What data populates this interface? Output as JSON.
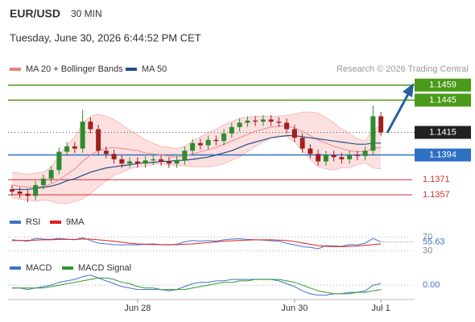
{
  "header": {
    "symbol": "EUR/USD",
    "timeframe": "30 MIN",
    "datetime": "Tuesday, June 30, 2026 6:44:52 PM CET",
    "source": "Research © 2026 Trading Central"
  },
  "chart_data": [
    {
      "type": "candlestick",
      "up_color": "#2e8b2e",
      "down_color": "#a02020",
      "open": [
        1.1362,
        1.136,
        1.1358,
        1.1356,
        1.1366,
        1.1372,
        1.138,
        1.1397,
        1.1402,
        1.14,
        1.1425,
        1.1418,
        1.1398,
        1.1395,
        1.139,
        1.1386,
        1.1388,
        1.1386,
        1.1389,
        1.139,
        1.1388,
        1.1386,
        1.1389,
        1.1398,
        1.1405,
        1.1403,
        1.1408,
        1.1407,
        1.1414,
        1.142,
        1.1424,
        1.1426,
        1.1425,
        1.1427,
        1.1425,
        1.1424,
        1.1418,
        1.141,
        1.14,
        1.1395,
        1.1388,
        1.1394,
        1.1392,
        1.139,
        1.1394,
        1.1393,
        1.1398,
        1.143
      ],
      "high": [
        1.1366,
        1.1364,
        1.1362,
        1.137,
        1.1376,
        1.1384,
        1.1401,
        1.1406,
        1.1406,
        1.1436,
        1.1429,
        1.1422,
        1.1402,
        1.1399,
        1.1394,
        1.1392,
        1.1392,
        1.1393,
        1.1394,
        1.1394,
        1.1392,
        1.1393,
        1.1402,
        1.1409,
        1.1409,
        1.1412,
        1.1412,
        1.1418,
        1.1424,
        1.1428,
        1.143,
        1.143,
        1.1431,
        1.1431,
        1.1429,
        1.1428,
        1.1422,
        1.1414,
        1.1404,
        1.1399,
        1.1398,
        1.1398,
        1.1396,
        1.1398,
        1.1398,
        1.1402,
        1.144,
        1.1434
      ],
      "low": [
        1.1356,
        1.1354,
        1.135,
        1.1352,
        1.1362,
        1.1368,
        1.1376,
        1.1393,
        1.1396,
        1.1396,
        1.1414,
        1.1394,
        1.1391,
        1.1386,
        1.1382,
        1.1382,
        1.1382,
        1.1382,
        1.1385,
        1.1384,
        1.1382,
        1.1382,
        1.1385,
        1.1394,
        1.1399,
        1.1399,
        1.1403,
        1.1403,
        1.141,
        1.1416,
        1.142,
        1.1421,
        1.1421,
        1.1421,
        1.142,
        1.1414,
        1.1406,
        1.1396,
        1.1391,
        1.1384,
        1.1384,
        1.1388,
        1.1386,
        1.1386,
        1.1389,
        1.1389,
        1.1394,
        1.1412
      ],
      "close": [
        1.136,
        1.1358,
        1.1356,
        1.1366,
        1.1372,
        1.138,
        1.1397,
        1.1402,
        1.14,
        1.1425,
        1.1418,
        1.1398,
        1.1395,
        1.139,
        1.1386,
        1.1388,
        1.1386,
        1.1389,
        1.139,
        1.1388,
        1.1386,
        1.1389,
        1.1398,
        1.1405,
        1.1403,
        1.1408,
        1.1407,
        1.1414,
        1.142,
        1.1424,
        1.1426,
        1.1425,
        1.1427,
        1.1425,
        1.1424,
        1.1418,
        1.141,
        1.14,
        1.1395,
        1.1388,
        1.1394,
        1.1392,
        1.139,
        1.1394,
        1.1393,
        1.1398,
        1.143,
        1.1415
      ],
      "bands": {
        "color": "#fbd3d3",
        "upper": [
          1.1378,
          1.1377,
          1.1376,
          1.1377,
          1.1378,
          1.1383,
          1.1393,
          1.1403,
          1.1411,
          1.1423,
          1.143,
          1.1432,
          1.143,
          1.1427,
          1.1422,
          1.1417,
          1.1413,
          1.1408,
          1.1405,
          1.1402,
          1.1401,
          1.14,
          1.1402,
          1.1407,
          1.1411,
          1.1415,
          1.1418,
          1.1422,
          1.1425,
          1.1428,
          1.1429,
          1.143,
          1.143,
          1.143,
          1.143,
          1.1431,
          1.1432,
          1.1434,
          1.1434,
          1.1433,
          1.1429,
          1.1424,
          1.1418,
          1.1414,
          1.1409,
          1.1407,
          1.1418,
          1.1421
        ],
        "lower": [
          1.1354,
          1.1353,
          1.1352,
          1.1351,
          1.1352,
          1.1351,
          1.1349,
          1.1349,
          1.1351,
          1.1353,
          1.1358,
          1.1364,
          1.137,
          1.1375,
          1.1378,
          1.1381,
          1.1383,
          1.1384,
          1.1385,
          1.1386,
          1.1385,
          1.1384,
          1.1384,
          1.1383,
          1.1383,
          1.1383,
          1.1384,
          1.1386,
          1.1389,
          1.1392,
          1.1397,
          1.1402,
          1.1406,
          1.141,
          1.1412,
          1.1411,
          1.1406,
          1.1398,
          1.139,
          1.1383,
          1.1381,
          1.138,
          1.1382,
          1.1382,
          1.1385,
          1.1387,
          1.1382,
          1.1381
        ]
      },
      "series": [
        {
          "name": "MA 20 + Bollinger Bands",
          "color": "#f08080",
          "values": [
            1.1366,
            1.1365,
            1.1364,
            1.1364,
            1.1365,
            1.1367,
            1.1371,
            1.1376,
            1.1381,
            1.1388,
            1.1394,
            1.1398,
            1.14,
            1.1401,
            1.14,
            1.1399,
            1.1398,
            1.1396,
            1.1395,
            1.1394,
            1.1393,
            1.1392,
            1.1393,
            1.1395,
            1.1397,
            1.1399,
            1.1401,
            1.1404,
            1.1407,
            1.141,
            1.1413,
            1.1416,
            1.1418,
            1.142,
            1.1421,
            1.1421,
            1.1419,
            1.1416,
            1.1412,
            1.1408,
            1.1405,
            1.1402,
            1.14,
            1.1398,
            1.1397,
            1.1397,
            1.14,
            1.1401
          ]
        },
        {
          "name": "MA 50",
          "color": "#1f4e8c",
          "values": [
            1.1362,
            1.1362,
            1.1362,
            1.1363,
            1.1364,
            1.1365,
            1.1367,
            1.137,
            1.1372,
            1.1375,
            1.1378,
            1.138,
            1.1382,
            1.1383,
            1.1384,
            1.1385,
            1.1386,
            1.1387,
            1.1387,
            1.1388,
            1.1388,
            1.1389,
            1.1389,
            1.139,
            1.1391,
            1.1392,
            1.1394,
            1.1396,
            1.1398,
            1.1401,
            1.1404,
            1.1406,
            1.1408,
            1.141,
            1.1411,
            1.1412,
            1.1412,
            1.1411,
            1.141,
            1.1409,
            1.1408,
            1.1407,
            1.1406,
            1.1405,
            1.1404,
            1.1404,
            1.1405,
            1.1405
          ]
        }
      ],
      "levels": [
        {
          "value": 1.1459,
          "color": "#4a9a1a",
          "style": "box",
          "line": "solid"
        },
        {
          "value": 1.1445,
          "color": "#4a9a1a",
          "style": "box",
          "line": "solid"
        },
        {
          "value": 1.1415,
          "color": "#222222",
          "style": "box",
          "line": "dotted"
        },
        {
          "value": 1.1394,
          "color": "#2f6fc4",
          "style": "box",
          "line": "solid"
        },
        {
          "value": 1.1371,
          "color": "#d03030",
          "style": "text",
          "line": "solid"
        },
        {
          "value": 1.1357,
          "color": "#d03030",
          "style": "text",
          "line": "solid"
        }
      ],
      "ylim": [
        1.1345,
        1.1467
      ],
      "xticks": [
        {
          "value": 16,
          "label": "Jun 28"
        },
        {
          "value": 36,
          "label": "Jun 30"
        },
        {
          "value": 47,
          "label": "Jul 1"
        }
      ]
    },
    {
      "type": "line",
      "series": [
        {
          "name": "RSI",
          "color": "#4472c4",
          "values": [
            62,
            60,
            58,
            66,
            64,
            63,
            66,
            64,
            62,
            68,
            60,
            52,
            50,
            48,
            47,
            48,
            47,
            49,
            50,
            48,
            47,
            49,
            56,
            60,
            58,
            60,
            58,
            62,
            64,
            65,
            63,
            62,
            61,
            59,
            58,
            52,
            47,
            42,
            40,
            36,
            45,
            44,
            43,
            48,
            47,
            52,
            66,
            55.63
          ]
        },
        {
          "name": "9MA",
          "color": "#e02020",
          "values": [
            60,
            60,
            60,
            61,
            62,
            62,
            63,
            63,
            63,
            64,
            64,
            62,
            60,
            58,
            55,
            52,
            50,
            49,
            48,
            48,
            48,
            48,
            49,
            50,
            52,
            54,
            56,
            58,
            59,
            60,
            61,
            62,
            62,
            62,
            61,
            60,
            57,
            53,
            49,
            45,
            43,
            42,
            42,
            43,
            44,
            46,
            48,
            50
          ]
        }
      ],
      "ylim": [
        15,
        85
      ],
      "yticks": [
        70,
        30
      ]
    },
    {
      "type": "line",
      "series": [
        {
          "name": "MACD",
          "color": "#4472c4",
          "values": [
            -0.0002,
            -0.0002,
            -0.0003,
            -0.0002,
            -0.0001,
            0.0,
            0.0002,
            0.0003,
            0.0004,
            0.0006,
            0.0007,
            0.0005,
            0.0003,
            0.0001,
            -0.0001,
            -0.0002,
            -0.0003,
            -0.0003,
            -0.0003,
            -0.0003,
            -0.0004,
            -0.0003,
            -0.0001,
            0.0001,
            0.0002,
            0.0002,
            0.0003,
            0.0003,
            0.0004,
            0.0004,
            0.0004,
            0.0004,
            0.0004,
            0.0004,
            0.0003,
            0.0001,
            -0.0001,
            -0.0004,
            -0.0006,
            -0.0007,
            -0.0007,
            -0.0006,
            -0.0006,
            -0.0005,
            -0.0005,
            -0.0004,
            0.0,
            0.0001
          ]
        },
        {
          "name": "MACD Signal",
          "color": "#2e9a2e",
          "values": [
            -0.0002,
            -0.0002,
            -0.0002,
            -0.0002,
            -0.0002,
            -0.0001,
            0.0,
            0.0001,
            0.0002,
            0.0003,
            0.0004,
            0.0005,
            0.0005,
            0.0004,
            0.0002,
            0.0001,
            -0.0001,
            -0.0002,
            -0.0002,
            -0.0003,
            -0.0003,
            -0.0003,
            -0.0003,
            -0.0002,
            -0.0001,
            0.0,
            0.0001,
            0.0002,
            0.0002,
            0.0003,
            0.0003,
            0.0004,
            0.0004,
            0.0004,
            0.0004,
            0.0003,
            0.0002,
            0.0,
            -0.0002,
            -0.0004,
            -0.0005,
            -0.0006,
            -0.0006,
            -0.0006,
            -0.0005,
            -0.0005,
            -0.0004,
            -0.0003
          ]
        }
      ],
      "ylim": [
        -0.001,
        0.0008
      ],
      "yticks": [
        {
          "value": 0,
          "label": "0.00"
        }
      ]
    }
  ]
}
